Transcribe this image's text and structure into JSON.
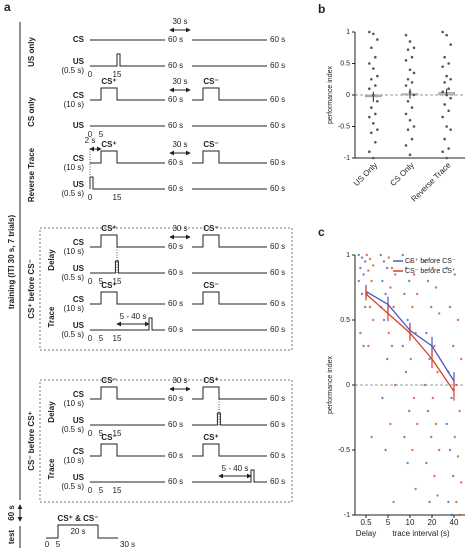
{
  "panel_a": {
    "panel_label": "a",
    "training_label": "training (ITI 30 s, 7 trials)",
    "iti_between": "60 s",
    "test_label": "test",
    "groups": [
      {
        "name": "US only",
        "blocks": [
          {
            "cs": "CS",
            "us": "US",
            "us_sub": "(0.5 s)",
            "iti": "30 s",
            "ticks": [
              "0",
              "15"
            ],
            "end": "60 s"
          }
        ]
      },
      {
        "name": "CS only",
        "blocks": [
          {
            "cs": "CS",
            "cs_sub": "(10 s)",
            "us": "US",
            "iti": "30 s",
            "stim": [
              "CS⁺",
              "CS⁻"
            ],
            "ticks": [
              "0",
              "5"
            ],
            "end": "60 s"
          }
        ]
      },
      {
        "name": "Reverse Trace",
        "blocks": [
          {
            "cs": "CS",
            "cs_sub": "(10 s)",
            "us": "US",
            "us_sub": "(0.5 s)",
            "iti": "30 s",
            "stim": [
              "CS⁺",
              "CS⁻"
            ],
            "gap": "2 s",
            "ticks": [
              "0",
              "15"
            ],
            "end": "60 s"
          }
        ]
      },
      {
        "name": "CS⁺ before CS⁻",
        "blocks": [
          {
            "name": "Delay",
            "cs": "CS",
            "cs_sub": "(10 s)",
            "us": "US",
            "us_sub": "(0.5 s)",
            "iti": "30 s",
            "stim": [
              "CS⁺",
              "CS⁻"
            ],
            "ticks": [
              "0",
              "5",
              "15"
            ],
            "end": "60 s"
          },
          {
            "name": "Trace",
            "cs": "CS",
            "cs_sub": "(10 s)",
            "us": "US",
            "us_sub": "(0.5 s)",
            "stim": [
              "CS⁺",
              "CS⁻"
            ],
            "interval": "5 - 40 s",
            "ticks": [
              "0",
              "5",
              "15"
            ],
            "end": "60 s"
          }
        ]
      },
      {
        "name": "CS⁻ before CS⁺",
        "blocks": [
          {
            "name": "Delay",
            "cs": "CS",
            "cs_sub": "(10 s)",
            "us": "US",
            "us_sub": "(0.5 s)",
            "iti": "30 s",
            "stim": [
              "CS⁻",
              "CS⁺"
            ],
            "ticks": [
              "0",
              "5",
              "15"
            ],
            "end": "60 s"
          },
          {
            "name": "Trace",
            "cs": "CS",
            "cs_sub": "(10 s)",
            "us": "US",
            "us_sub": "(0.5 s)",
            "stim": [
              "CS⁻",
              "CS⁺"
            ],
            "interval": "5 - 40 s",
            "ticks": [
              "0",
              "5",
              "15"
            ],
            "end": "60 s"
          }
        ]
      }
    ],
    "test": {
      "stim": "CS⁺ & CS⁻",
      "duration": "20 s",
      "ticks": [
        "0",
        "5"
      ],
      "end": "30 s"
    }
  },
  "chart_data": [
    {
      "type": "bar",
      "panel_label": "b",
      "ylabel": "performance index",
      "categories": [
        "US Only",
        "CS Only",
        "Reverse Trace"
      ],
      "values": [
        -0.03,
        0.02,
        0.04
      ],
      "errors": [
        0.08,
        0.08,
        0.06
      ],
      "color": "#bbbbbb",
      "point_color": "#555555",
      "points": [
        [
          1,
          0.97,
          0.88,
          0.75,
          0.6,
          0.5,
          0.42,
          0.3,
          0.25,
          0.15,
          0.1,
          0,
          -0.1,
          -0.2,
          -0.3,
          -0.35,
          -0.45,
          -0.55,
          -0.6,
          -0.75,
          -0.9,
          -1
        ],
        [
          0.95,
          0.85,
          0.75,
          0.72,
          0.6,
          0.55,
          0.4,
          0.35,
          0.25,
          0.2,
          0.15,
          0.05,
          0,
          -0.1,
          -0.2,
          -0.3,
          -0.4,
          -0.5,
          -0.55,
          -0.7,
          -0.8,
          -0.95
        ],
        [
          1,
          0.95,
          0.8,
          0.6,
          0.5,
          0.45,
          0.3,
          0.25,
          0.2,
          0.1,
          0.05,
          0,
          -0.05,
          -0.15,
          -0.25,
          -0.35,
          -0.5,
          -0.55,
          -0.7,
          -0.85,
          -0.9,
          -1
        ]
      ],
      "ylim": [
        -1,
        1
      ],
      "yticks": [
        -1,
        -0.5,
        0,
        0.5,
        1
      ],
      "reference_line": 0
    },
    {
      "type": "line",
      "panel_label": "c",
      "ylabel": "performance index",
      "categories": [
        "0.5",
        "5",
        "10",
        "20",
        "40"
      ],
      "xlabel_groups": [
        "Delay",
        "trace interval (s)"
      ],
      "series": [
        {
          "name": "CS⁺ before CS⁻",
          "color": "#4a5bbf",
          "values": [
            0.72,
            0.62,
            0.42,
            0.3,
            0.03
          ],
          "errors": [
            0.05,
            0.06,
            0.06,
            0.07,
            0.07
          ],
          "points": [
            [
              1,
              0.98,
              0.95,
              0.9,
              0.85,
              0.8,
              0.7,
              0.6,
              0.4,
              0.3
            ],
            [
              1,
              0.95,
              0.9,
              0.8,
              0.7,
              0.6,
              0.5,
              0.2,
              -0.1,
              -0.5
            ],
            [
              1,
              0.9,
              0.8,
              0.7,
              0.5,
              0.3,
              0.1,
              -0.2,
              -0.4,
              -0.6
            ],
            [
              0.95,
              0.8,
              0.6,
              0.4,
              0.2,
              0,
              -0.2,
              -0.4,
              -0.6,
              -0.9
            ],
            [
              0.9,
              0.6,
              0.3,
              0.1,
              -0.1,
              -0.3,
              -0.5,
              -0.7,
              -0.9,
              -1
            ]
          ]
        },
        {
          "name": "CS⁻ before CS⁺",
          "color": "#d9412b",
          "values": [
            0.7,
            0.55,
            0.4,
            0.2,
            -0.05
          ],
          "errors": [
            0.05,
            0.06,
            0.06,
            0.07,
            0.07
          ],
          "points": [
            [
              1,
              0.97,
              0.92,
              0.88,
              0.8,
              0.7,
              0.6,
              0.5,
              0.3,
              -0.4
            ],
            [
              0.98,
              0.9,
              0.85,
              0.75,
              0.6,
              0.4,
              0.3,
              0,
              -0.3,
              -0.9
            ],
            [
              0.95,
              0.85,
              0.7,
              0.6,
              0.4,
              0.2,
              -0.1,
              -0.3,
              -0.5,
              -0.8
            ],
            [
              0.9,
              0.75,
              0.55,
              0.3,
              0.1,
              -0.1,
              -0.3,
              -0.5,
              -0.7,
              -0.85
            ],
            [
              0.85,
              0.5,
              0.2,
              0,
              -0.2,
              -0.4,
              -0.55,
              -0.75,
              -0.9,
              -1
            ]
          ]
        }
      ],
      "ylim": [
        -1,
        1
      ],
      "yticks": [
        -1,
        -0.5,
        0,
        0.5,
        1
      ],
      "reference_line": 0,
      "legend": "upper right"
    }
  ]
}
